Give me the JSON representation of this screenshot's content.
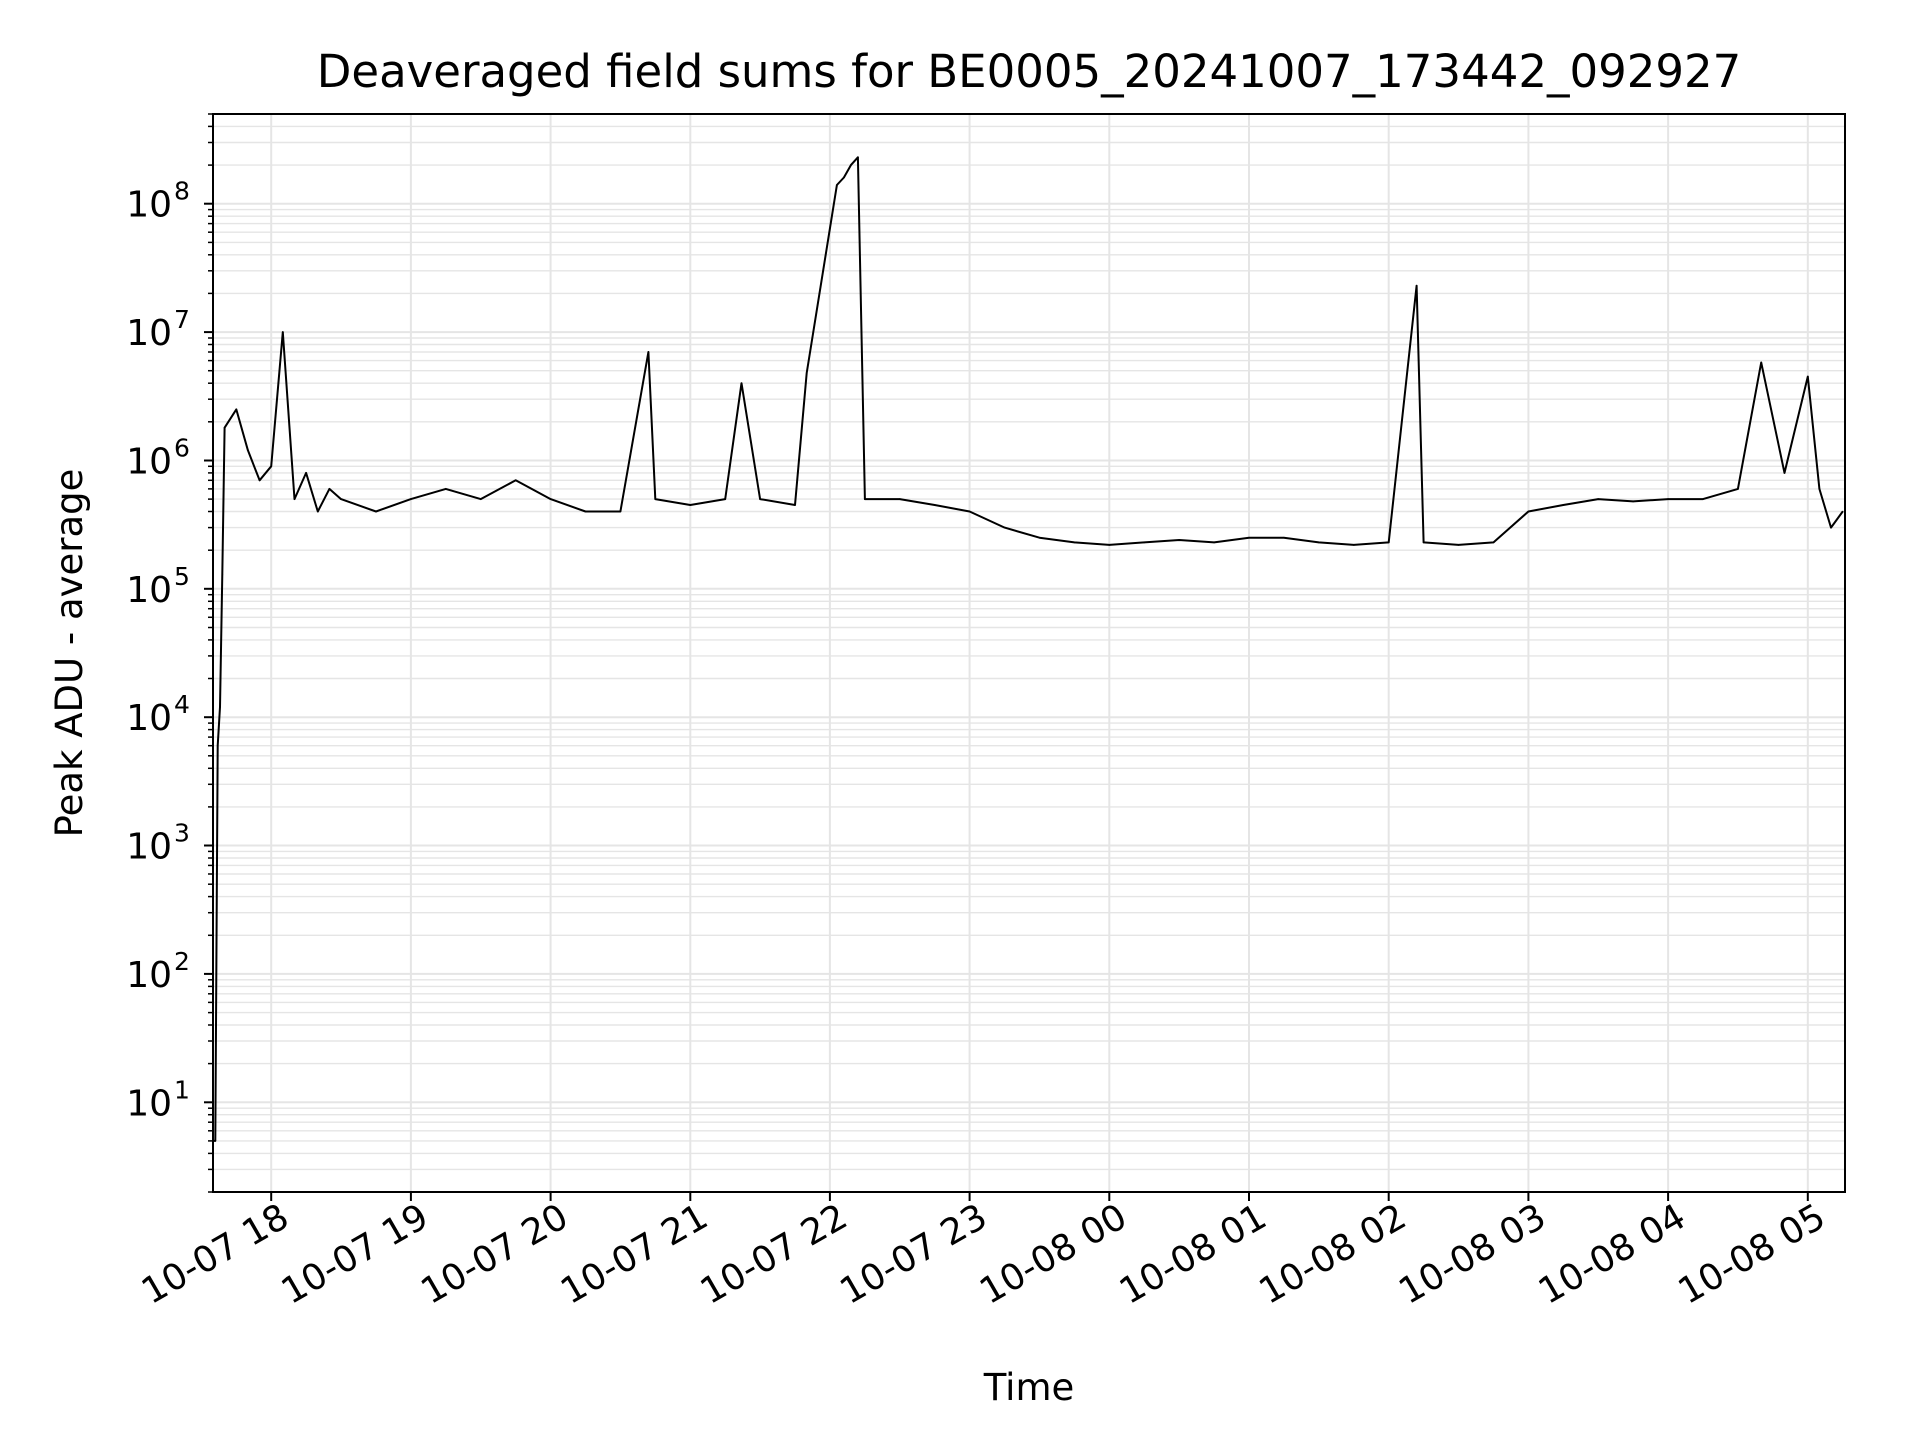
{
  "chart_data": {
    "type": "line",
    "title": "Deaveraged field sums for BE0005_20241007_173442_092927",
    "xlabel": "Time",
    "ylabel": "Peak ADU - average",
    "x_axis": "datetime",
    "y_scale": "log",
    "xlim": [
      "2024-10-07T17:35",
      "2024-10-08T05:16"
    ],
    "ylim": [
      2,
      500000000
    ],
    "x_ticks": [
      {
        "t": "2024-10-07T18:00",
        "label": "10-07 18"
      },
      {
        "t": "2024-10-07T19:00",
        "label": "10-07 19"
      },
      {
        "t": "2024-10-07T20:00",
        "label": "10-07 20"
      },
      {
        "t": "2024-10-07T21:00",
        "label": "10-07 21"
      },
      {
        "t": "2024-10-07T22:00",
        "label": "10-07 22"
      },
      {
        "t": "2024-10-07T23:00",
        "label": "10-07 23"
      },
      {
        "t": "2024-10-08T00:00",
        "label": "10-08 00"
      },
      {
        "t": "2024-10-08T01:00",
        "label": "10-08 01"
      },
      {
        "t": "2024-10-08T02:00",
        "label": "10-08 02"
      },
      {
        "t": "2024-10-08T03:00",
        "label": "10-08 03"
      },
      {
        "t": "2024-10-08T04:00",
        "label": "10-08 04"
      },
      {
        "t": "2024-10-08T05:00",
        "label": "10-08 05"
      }
    ],
    "y_ticks": [
      {
        "value": 10,
        "base": "10",
        "exp": "1"
      },
      {
        "value": 100,
        "base": "10",
        "exp": "2"
      },
      {
        "value": 1000,
        "base": "10",
        "exp": "3"
      },
      {
        "value": 10000,
        "base": "10",
        "exp": "4"
      },
      {
        "value": 100000,
        "base": "10",
        "exp": "5"
      },
      {
        "value": 1000000,
        "base": "10",
        "exp": "6"
      },
      {
        "value": 10000000,
        "base": "10",
        "exp": "7"
      },
      {
        "value": 100000000,
        "base": "10",
        "exp": "8"
      }
    ],
    "grid": true,
    "line_color": "#000000",
    "grid_color": "#e5e5e5",
    "series": [
      {
        "x": [
          "2024-10-07T17:35",
          "2024-10-07T17:36",
          "2024-10-07T17:37",
          "2024-10-07T17:38",
          "2024-10-07T17:39",
          "2024-10-07T17:40",
          "2024-10-07T17:45",
          "2024-10-07T17:50",
          "2024-10-07T17:55",
          "2024-10-07T18:00",
          "2024-10-07T18:05",
          "2024-10-07T18:10",
          "2024-10-07T18:15",
          "2024-10-07T18:20",
          "2024-10-07T18:25",
          "2024-10-07T18:30",
          "2024-10-07T18:45",
          "2024-10-07T19:00",
          "2024-10-07T19:15",
          "2024-10-07T19:30",
          "2024-10-07T19:45",
          "2024-10-07T20:00",
          "2024-10-07T20:15",
          "2024-10-07T20:30",
          "2024-10-07T20:42",
          "2024-10-07T20:45",
          "2024-10-07T21:00",
          "2024-10-07T21:15",
          "2024-10-07T21:22",
          "2024-10-07T21:30",
          "2024-10-07T21:45",
          "2024-10-07T21:50",
          "2024-10-07T22:03",
          "2024-10-07T22:06",
          "2024-10-07T22:09",
          "2024-10-07T22:12",
          "2024-10-07T22:15",
          "2024-10-07T22:30",
          "2024-10-07T22:45",
          "2024-10-07T23:00",
          "2024-10-07T23:15",
          "2024-10-07T23:30",
          "2024-10-07T23:45",
          "2024-10-08T00:00",
          "2024-10-08T00:15",
          "2024-10-08T00:30",
          "2024-10-08T00:45",
          "2024-10-08T01:00",
          "2024-10-08T01:15",
          "2024-10-08T01:30",
          "2024-10-08T01:45",
          "2024-10-08T02:00",
          "2024-10-08T02:12",
          "2024-10-08T02:15",
          "2024-10-08T02:30",
          "2024-10-08T02:45",
          "2024-10-08T03:00",
          "2024-10-08T03:15",
          "2024-10-08T03:30",
          "2024-10-08T03:45",
          "2024-10-08T04:00",
          "2024-10-08T04:15",
          "2024-10-08T04:30",
          "2024-10-08T04:40",
          "2024-10-08T04:50",
          "2024-10-08T05:00",
          "2024-10-08T05:05",
          "2024-10-08T05:10",
          "2024-10-08T05:15"
        ],
        "y": [
          5,
          5,
          6000,
          12000,
          130000,
          1800000,
          2500000,
          1200000,
          700000,
          900000,
          10000000,
          500000,
          800000,
          400000,
          600000,
          500000,
          400000,
          500000,
          600000,
          500000,
          700000,
          500000,
          400000,
          400000,
          7000000,
          500000,
          450000,
          500000,
          4000000,
          500000,
          450000,
          4800000,
          140000000,
          160000000,
          200000000,
          230000000,
          500000,
          500000,
          450000,
          400000,
          300000,
          250000,
          230000,
          220000,
          230000,
          240000,
          230000,
          250000,
          250000,
          230000,
          220000,
          230000,
          23000000,
          230000,
          220000,
          230000,
          400000,
          450000,
          500000,
          480000,
          500000,
          500000,
          600000,
          5800000,
          800000,
          4500000,
          600000,
          300000,
          400000
        ]
      }
    ]
  }
}
